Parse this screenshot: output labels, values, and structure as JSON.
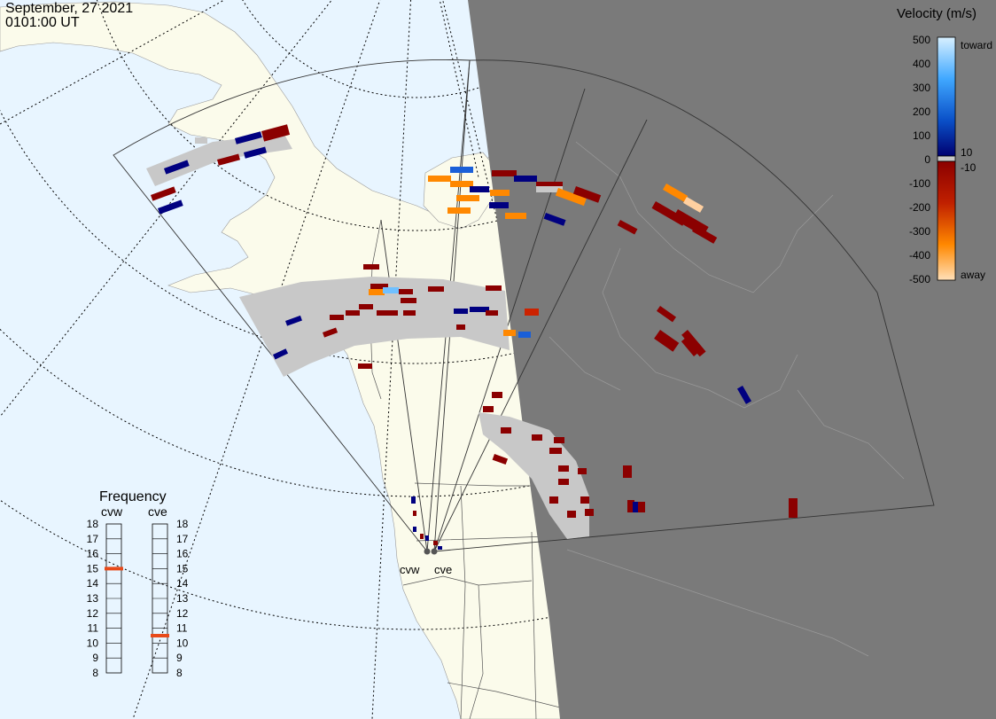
{
  "header": {
    "date": "September, 27 2021",
    "time": "0101:00 UT"
  },
  "colors": {
    "ocean": "#e8f5ff",
    "land": "#fbfbeb",
    "night": "#7a7a7a",
    "ground_scatter": "#c8c8c8",
    "toward_dark": "#000080",
    "away_dark": "#8b0000",
    "away_orange": "#ff8800",
    "frequency_marker": "#e84a1a"
  },
  "velocity_legend": {
    "title": "Velocity (m/s)",
    "ticks": [
      "500",
      "400",
      "300",
      "200",
      "100",
      "10",
      "0",
      "-10",
      "-100",
      "-200",
      "-300",
      "-400",
      "-500"
    ],
    "toward_label": "toward",
    "away_label": "away"
  },
  "frequency_panel": {
    "title": "Frequency",
    "left_label": "cvw",
    "right_label": "cve",
    "ticks": [
      "18",
      "17",
      "16",
      "15",
      "14",
      "13",
      "12",
      "11",
      "10",
      "9",
      "8"
    ],
    "cvw_value": 15,
    "cve_value": 10.5
  },
  "radars": {
    "cvw_label": "cvw",
    "cve_label": "cve"
  }
}
